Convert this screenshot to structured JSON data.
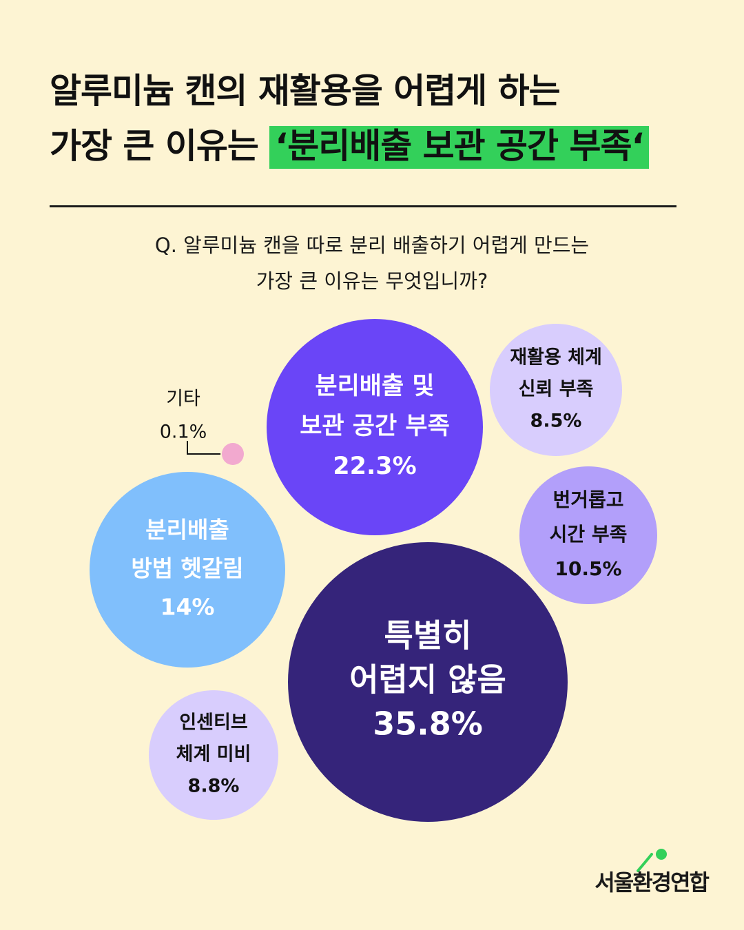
{
  "title": {
    "line1": "알루미늄 캔의 재활용을 어렵게 하는",
    "line2_prefix": "가장 큰 이유는 ",
    "line2_highlight": "‘분리배출 보관 공간 부족‘"
  },
  "question": {
    "line1": "Q. 알루미늄 캔을 따로 분리 배출하기 어렵게 만드는",
    "line2": "가장 큰 이유는 무엇입니까?"
  },
  "chart_data": {
    "type": "bubble",
    "series": [
      {
        "label_lines": [
          "특별히",
          "어렵지 않음"
        ],
        "value_label": "35.8%",
        "value": 35.8,
        "color": "#35247a",
        "text_color": "#ffffff"
      },
      {
        "label_lines": [
          "분리배출 및",
          "보관 공간 부족"
        ],
        "value_label": "22.3%",
        "value": 22.3,
        "color": "#6a45f7",
        "text_color": "#ffffff"
      },
      {
        "label_lines": [
          "분리배출",
          "방법 헷갈림"
        ],
        "value_label": "14%",
        "value": 14,
        "color": "#80bffc",
        "text_color": "#ffffff"
      },
      {
        "label_lines": [
          "번거롭고",
          "시간 부족"
        ],
        "value_label": "10.5%",
        "value": 10.5,
        "color": "#b29ffa",
        "text_color": "#111111"
      },
      {
        "label_lines": [
          "인센티브",
          "체계 미비"
        ],
        "value_label": "8.8%",
        "value": 8.8,
        "color": "#d8cdfd",
        "text_color": "#111111"
      },
      {
        "label_lines": [
          "재활용 체계",
          "신뢰 부족"
        ],
        "value_label": "8.5%",
        "value": 8.5,
        "color": "#d8cdfd",
        "text_color": "#111111"
      },
      {
        "label_lines": [
          "기타"
        ],
        "value_label": "0.1%",
        "value": 0.1,
        "color": "#f2a9cf",
        "text_color": "#111111"
      }
    ]
  },
  "logo": {
    "text": "서울환경연합",
    "color": "#33d05a"
  }
}
